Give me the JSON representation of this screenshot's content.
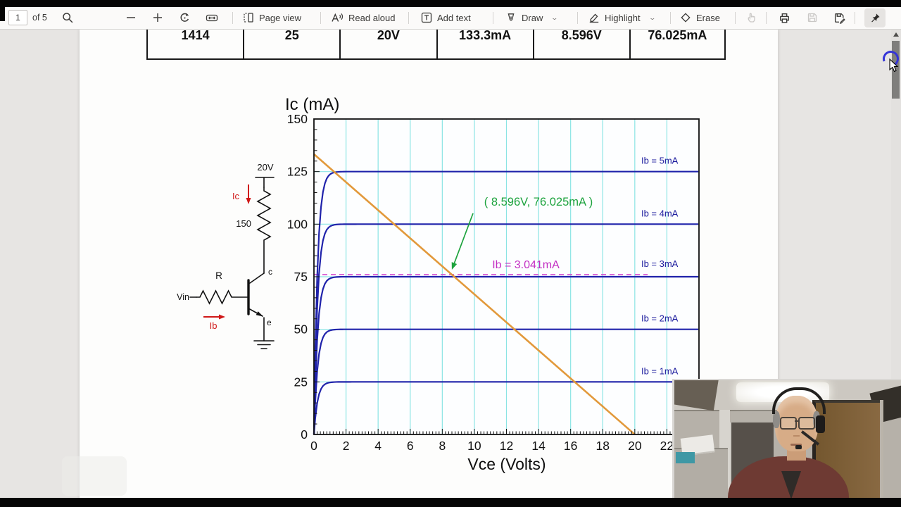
{
  "toolbar": {
    "page_number": "1",
    "of_pages": "of 5",
    "buttons": {
      "page_view": "Page view",
      "read_aloud": "Read aloud",
      "add_text": "Add text",
      "draw": "Draw",
      "highlight": "Highlight",
      "erase": "Erase"
    }
  },
  "document": {
    "table": {
      "cells": [
        "1414",
        "25",
        "20V",
        "133.3mA",
        "8.596V",
        "76.025mA"
      ]
    },
    "circuit": {
      "supply_voltage": "20V",
      "collector_resistor": "150",
      "collector_current_label": "Ic",
      "base_resistor_label": "R",
      "input_label": "Vin",
      "base_current_label": "Ib",
      "collector_terminal": "c",
      "emitter_terminal": "e"
    }
  },
  "chart_data": {
    "type": "line",
    "title": "Ic (mA)",
    "xlabel": "Vce (Volts)",
    "ylabel": "Ic (mA)",
    "xlim": [
      0,
      24
    ],
    "ylim": [
      0,
      150
    ],
    "x_ticks": [
      0,
      2,
      4,
      6,
      8,
      10,
      12,
      14,
      16,
      18,
      20,
      22
    ],
    "y_ticks": [
      0,
      25,
      50,
      75,
      100,
      125,
      150
    ],
    "grid": true,
    "grid_color": "#8ae4e4",
    "curve_color": "#2023ab",
    "curve_label_color": "#1b1b9d",
    "series": [
      {
        "name": "Ib = 1mA",
        "saturation_mA": 25
      },
      {
        "name": "Ib = 2mA",
        "saturation_mA": 50
      },
      {
        "name": "Ib = 3mA",
        "saturation_mA": 75
      },
      {
        "name": "Ib = 4mA",
        "saturation_mA": 100
      },
      {
        "name": "Ib = 5mA",
        "saturation_mA": 125
      }
    ],
    "load_line": {
      "x": [
        0,
        20
      ],
      "y": [
        133.3,
        0
      ],
      "color": "#e2993b"
    },
    "q_point": {
      "label": "( 8.596V, 76.025mA )",
      "vce": 8.596,
      "ic": 76.025,
      "color": "#1da33e"
    },
    "bias_line": {
      "label": "Ib = 3.041mA",
      "ic": 76.025,
      "end_v": 20.8,
      "color": "#d44fd0",
      "label_color": "#c32ec3"
    }
  }
}
